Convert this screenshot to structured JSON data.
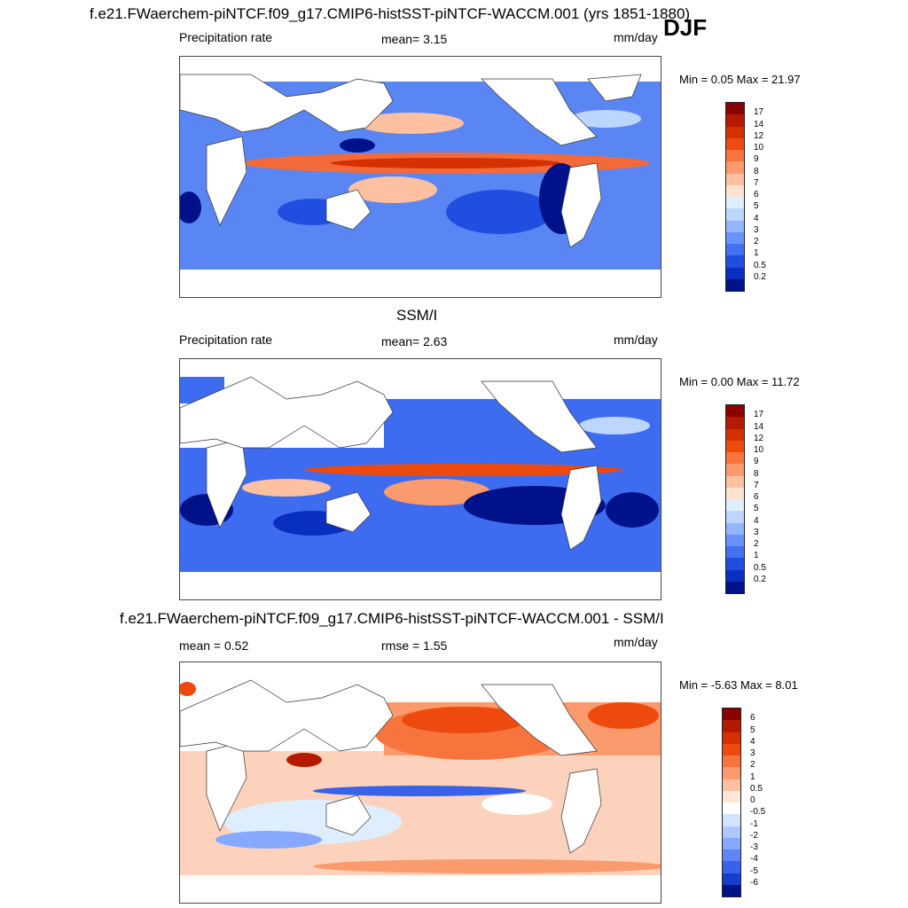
{
  "header": {
    "title": "f.e21.FWaerchem-piNTCF.f09_g17.CMIP6-histSST-piNTCF-WACCM.001 (yrs 1851-1880)",
    "season": "DJF"
  },
  "panels": [
    {
      "id": "model",
      "left_label": "Precipitation rate",
      "center_label": "mean=   3.15",
      "units": "mm/day",
      "minmax": "Min =   0.05 Max =  21.97"
    },
    {
      "id": "obs",
      "title": "SSM/I",
      "left_label": "Precipitation rate",
      "center_label": "mean=   2.63",
      "units": "mm/day",
      "minmax": "Min =   0.00 Max =  11.72"
    },
    {
      "id": "diff",
      "title": "f.e21.FWaerchem-piNTCF.f09_g17.CMIP6-histSST-piNTCF-WACCM.001 - SSM/I",
      "left_label": "mean =   0.52",
      "center_label": "rmse =   1.55",
      "units": "mm/day",
      "minmax": "Min =  -5.63 Max =   8.01"
    }
  ],
  "colorbars": {
    "precip": {
      "labels": [
        "17",
        "14",
        "12",
        "10",
        "9",
        "8",
        "7",
        "6",
        "5",
        "4",
        "3",
        "2",
        "1",
        "0.5",
        "0.2"
      ],
      "colors": [
        "#8b0000",
        "#b31a00",
        "#d62f00",
        "#ee4a0e",
        "#f7753c",
        "#fb9a6c",
        "#fdc0a0",
        "#ffe3d0",
        "#deeeff",
        "#bcd6ff",
        "#93b6ff",
        "#6a92ff",
        "#4471f2",
        "#1f4ee0",
        "#0a2ec0",
        "#00128a"
      ]
    },
    "diff": {
      "labels": [
        "6",
        "5",
        "4",
        "3",
        "2",
        "1",
        "0.5",
        "0",
        "-0.5",
        "-1",
        "-2",
        "-3",
        "-4",
        "-5",
        "-6"
      ],
      "colors": [
        "#8b0000",
        "#b31a00",
        "#d62f00",
        "#ee4a0e",
        "#f7753c",
        "#fb9a6c",
        "#fdc0a0",
        "#ffe6d6",
        "#ffffff",
        "#d3e3ff",
        "#aec8ff",
        "#86a8ff",
        "#5e86f8",
        "#3862ea",
        "#153ecf",
        "#00128a"
      ]
    }
  }
}
